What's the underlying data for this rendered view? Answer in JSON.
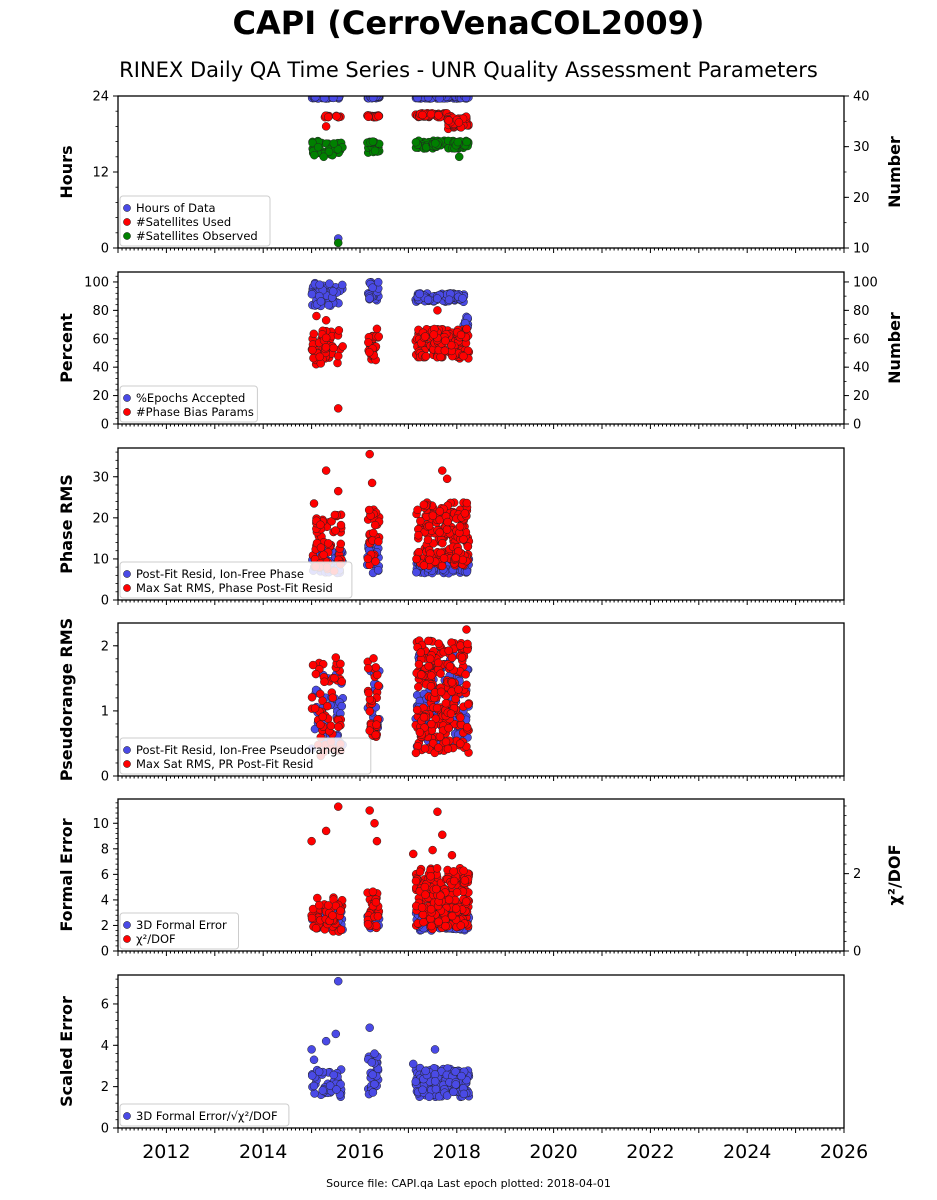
{
  "title": "CAPI (CerroVenaCOL2009)",
  "subtitle": "RINEX Daily QA Time Series - UNR Quality Assessment Parameters",
  "footer": "Source file: CAPI.qa Last epoch plotted: 2018-04-01",
  "colors": {
    "blue": "#4a4ae6",
    "red": "#ff0000",
    "green": "#008000"
  },
  "chart_data": [
    {
      "type": "scatter",
      "ylabel": "Hours",
      "ylabel_right": "Number",
      "xlim": [
        2011.0,
        2026.0
      ],
      "ylim": [
        0,
        24
      ],
      "yticks": [
        0,
        12,
        24
      ],
      "ylim_right": [
        10,
        40
      ],
      "yticks_right": [
        10,
        20,
        30,
        40
      ],
      "legend": "lower-left",
      "series": [
        {
          "name": "Hours of Data",
          "color": "blue",
          "axis": "left",
          "segments": [
            {
              "x": [
                2015.0,
                2015.65
              ],
              "y": [
                23.6,
                24.0
              ],
              "n": 40
            },
            {
              "x": [
                2016.15,
                2016.4
              ],
              "y": [
                23.6,
                24.0
              ],
              "n": 25
            },
            {
              "x": [
                2017.15,
                2018.25
              ],
              "y": [
                23.6,
                24.0
              ],
              "n": 110
            }
          ],
          "points": [
            [
              2015.55,
              1.5
            ]
          ]
        },
        {
          "name": "#Satellites Used",
          "color": "red",
          "axis": "right",
          "segments": [
            {
              "x": [
                2015.25,
                2015.65
              ],
              "y": [
                35.8,
                36.2
              ],
              "n": 15
            },
            {
              "x": [
                2016.15,
                2016.4
              ],
              "y": [
                35.8,
                36.2
              ],
              "n": 20
            },
            {
              "x": [
                2017.15,
                2017.8
              ],
              "y": [
                35.8,
                36.6
              ],
              "n": 60
            },
            {
              "x": [
                2017.8,
                2018.25
              ],
              "y": [
                33.5,
                36.0
              ],
              "n": 50
            }
          ],
          "points": [
            [
              2015.3,
              34.0
            ]
          ]
        },
        {
          "name": "#Satellites Observed",
          "color": "green",
          "axis": "right",
          "segments": [
            {
              "x": [
                2015.0,
                2015.65
              ],
              "y": [
                28.2,
                31.2
              ],
              "n": 45
            },
            {
              "x": [
                2016.15,
                2016.4
              ],
              "y": [
                28.8,
                31.2
              ],
              "n": 25
            },
            {
              "x": [
                2017.15,
                2018.25
              ],
              "y": [
                29.6,
                31.2
              ],
              "n": 100
            }
          ],
          "points": [
            [
              2015.55,
              11.0
            ],
            [
              2015.25,
              28.0
            ],
            [
              2018.05,
              28.0
            ]
          ]
        }
      ]
    },
    {
      "type": "scatter",
      "ylabel": "Percent",
      "ylabel_right": "Number",
      "xlim": [
        2011.0,
        2026.0
      ],
      "ylim": [
        0,
        107
      ],
      "yticks": [
        0,
        20,
        40,
        60,
        80,
        100
      ],
      "ylim_right": [
        0,
        107
      ],
      "yticks_right": [
        0,
        20,
        40,
        60,
        80,
        100
      ],
      "legend": "lower-left",
      "series": [
        {
          "name": "%Epochs Accepted",
          "color": "blue",
          "axis": "left",
          "segments": [
            {
              "x": [
                2015.0,
                2015.65
              ],
              "y": [
                83,
                100
              ],
              "n": 45
            },
            {
              "x": [
                2016.15,
                2016.4
              ],
              "y": [
                87,
                100
              ],
              "n": 25
            },
            {
              "x": [
                2017.15,
                2018.15
              ],
              "y": [
                86,
                92
              ],
              "n": 110
            },
            {
              "x": [
                2018.1,
                2018.25
              ],
              "y": [
                68,
                76
              ],
              "n": 8
            }
          ],
          "points": []
        },
        {
          "name": "#Phase Bias Params",
          "color": "red",
          "axis": "right",
          "segments": [
            {
              "x": [
                2015.0,
                2015.65
              ],
              "y": [
                42,
                66
              ],
              "n": 50
            },
            {
              "x": [
                2016.15,
                2016.4
              ],
              "y": [
                44,
                62
              ],
              "n": 25
            },
            {
              "x": [
                2017.15,
                2018.25
              ],
              "y": [
                46,
                67
              ],
              "n": 160
            }
          ],
          "points": [
            [
              2015.1,
              76
            ],
            [
              2015.3,
              73
            ],
            [
              2016.35,
              67
            ],
            [
              2017.6,
              80
            ],
            [
              2015.55,
              11
            ]
          ]
        }
      ]
    },
    {
      "type": "scatter",
      "ylabel": "Phase RMS",
      "xlim": [
        2011.0,
        2026.0
      ],
      "ylim": [
        0,
        37
      ],
      "yticks": [
        0,
        10,
        20,
        30
      ],
      "legend": "lower-left",
      "series": [
        {
          "name": "Post-Fit Resid, Ion-Free Phase",
          "color": "blue",
          "axis": "left",
          "segments": [
            {
              "x": [
                2015.0,
                2015.65
              ],
              "y": [
                6.5,
                12
              ],
              "n": 40
            },
            {
              "x": [
                2016.15,
                2016.4
              ],
              "y": [
                6.5,
                15
              ],
              "n": 25
            },
            {
              "x": [
                2017.15,
                2018.25
              ],
              "y": [
                6.5,
                10
              ],
              "n": 100
            }
          ],
          "points": []
        },
        {
          "name": "Max Sat RMS, Phase Post-Fit Resid",
          "color": "red",
          "axis": "left",
          "segments": [
            {
              "x": [
                2015.0,
                2015.65
              ],
              "y": [
                7,
                21
              ],
              "n": 55
            },
            {
              "x": [
                2016.15,
                2016.4
              ],
              "y": [
                8,
                22
              ],
              "n": 30
            },
            {
              "x": [
                2017.15,
                2018.25
              ],
              "y": [
                8,
                24
              ],
              "n": 200
            }
          ],
          "points": [
            [
              2015.3,
              31.5
            ],
            [
              2016.2,
              35.5
            ],
            [
              2015.55,
              26.5
            ],
            [
              2015.05,
              23.5
            ],
            [
              2017.7,
              31.5
            ],
            [
              2016.25,
              28.5
            ],
            [
              2017.8,
              29.5
            ]
          ]
        }
      ]
    },
    {
      "type": "scatter",
      "ylabel": "Pseudorange RMS",
      "xlim": [
        2011.0,
        2026.0
      ],
      "ylim": [
        0,
        2.35
      ],
      "yticks": [
        0,
        1,
        2
      ],
      "legend": "lower-left",
      "series": [
        {
          "name": "Post-Fit Resid, Ion-Free Pseudorange",
          "color": "blue",
          "axis": "left",
          "segments": [
            {
              "x": [
                2015.0,
                2015.65
              ],
              "y": [
                0.35,
                1.6
              ],
              "n": 40
            },
            {
              "x": [
                2016.15,
                2016.4
              ],
              "y": [
                0.55,
                1.7
              ],
              "n": 25
            },
            {
              "x": [
                2017.15,
                2018.25
              ],
              "y": [
                0.45,
                1.9
              ],
              "n": 100
            }
          ],
          "points": []
        },
        {
          "name": "Max Sat RMS, PR Post-Fit Resid",
          "color": "red",
          "axis": "left",
          "segments": [
            {
              "x": [
                2015.0,
                2015.65
              ],
              "y": [
                0.3,
                1.75
              ],
              "n": 55
            },
            {
              "x": [
                2016.15,
                2016.4
              ],
              "y": [
                0.45,
                1.9
              ],
              "n": 30
            },
            {
              "x": [
                2017.15,
                2018.25
              ],
              "y": [
                0.35,
                2.1
              ],
              "n": 220
            }
          ],
          "points": [
            [
              2015.5,
              1.82
            ],
            [
              2018.2,
              2.25
            ],
            [
              2017.45,
              1.8
            ]
          ]
        }
      ]
    },
    {
      "type": "scatter",
      "ylabel": "Formal Error",
      "ylabel_right": "χ²/DOF",
      "xlim": [
        2011.0,
        2026.0
      ],
      "ylim": [
        0,
        11.9
      ],
      "yticks": [
        0,
        2,
        4,
        6,
        8,
        10
      ],
      "ylim_right": [
        0,
        3.93
      ],
      "yticks_right": [
        0,
        2
      ],
      "legend": "lower-left",
      "series": [
        {
          "name": "3D Formal Error",
          "color": "blue",
          "axis": "left",
          "segments": [
            {
              "x": [
                2015.0,
                2015.65
              ],
              "y": [
                1.6,
                3.2
              ],
              "n": 40
            },
            {
              "x": [
                2016.15,
                2016.4
              ],
              "y": [
                1.7,
                3.2
              ],
              "n": 25
            },
            {
              "x": [
                2017.15,
                2018.25
              ],
              "y": [
                1.6,
                3.0
              ],
              "n": 100
            }
          ],
          "points": []
        },
        {
          "name": "χ²/DOF",
          "color": "red",
          "axis": "left",
          "segments": [
            {
              "x": [
                2015.0,
                2015.65
              ],
              "y": [
                1.5,
                4.2
              ],
              "n": 55
            },
            {
              "x": [
                2016.15,
                2016.4
              ],
              "y": [
                1.6,
                5.0
              ],
              "n": 30
            },
            {
              "x": [
                2017.15,
                2018.25
              ],
              "y": [
                1.7,
                6.5
              ],
              "n": 220
            }
          ],
          "points": [
            [
              2015.55,
              11.3
            ],
            [
              2016.2,
              11.0
            ],
            [
              2017.6,
              10.9
            ],
            [
              2015.0,
              8.6
            ],
            [
              2016.3,
              10.0
            ],
            [
              2015.3,
              9.4
            ],
            [
              2017.1,
              7.6
            ],
            [
              2017.7,
              9.1
            ],
            [
              2017.9,
              7.5
            ],
            [
              2016.35,
              8.6
            ],
            [
              2017.5,
              7.9
            ]
          ]
        }
      ]
    },
    {
      "type": "scatter",
      "ylabel": "Scaled Error",
      "xlim": [
        2011.0,
        2026.0
      ],
      "ylim": [
        0,
        7.4
      ],
      "yticks": [
        0,
        2,
        4,
        6
      ],
      "xticks": [
        2012,
        2014,
        2016,
        2018,
        2020,
        2022,
        2024,
        2026
      ],
      "legend": "lower-left",
      "series": [
        {
          "name": "3D Formal Error/√χ²/DOF",
          "color": "blue",
          "axis": "left",
          "segments": [
            {
              "x": [
                2015.0,
                2015.65
              ],
              "y": [
                1.5,
                2.9
              ],
              "n": 45
            },
            {
              "x": [
                2016.15,
                2016.4
              ],
              "y": [
                1.6,
                3.5
              ],
              "n": 28
            },
            {
              "x": [
                2017.15,
                2018.25
              ],
              "y": [
                1.5,
                2.9
              ],
              "n": 180
            }
          ],
          "points": [
            [
              2015.55,
              7.1
            ],
            [
              2016.2,
              4.85
            ],
            [
              2015.5,
              4.55
            ],
            [
              2015.3,
              4.2
            ],
            [
              2015.0,
              3.8
            ],
            [
              2017.55,
              3.8
            ],
            [
              2015.05,
              3.3
            ],
            [
              2017.1,
              3.1
            ],
            [
              2016.3,
              3.6
            ]
          ]
        }
      ]
    }
  ]
}
